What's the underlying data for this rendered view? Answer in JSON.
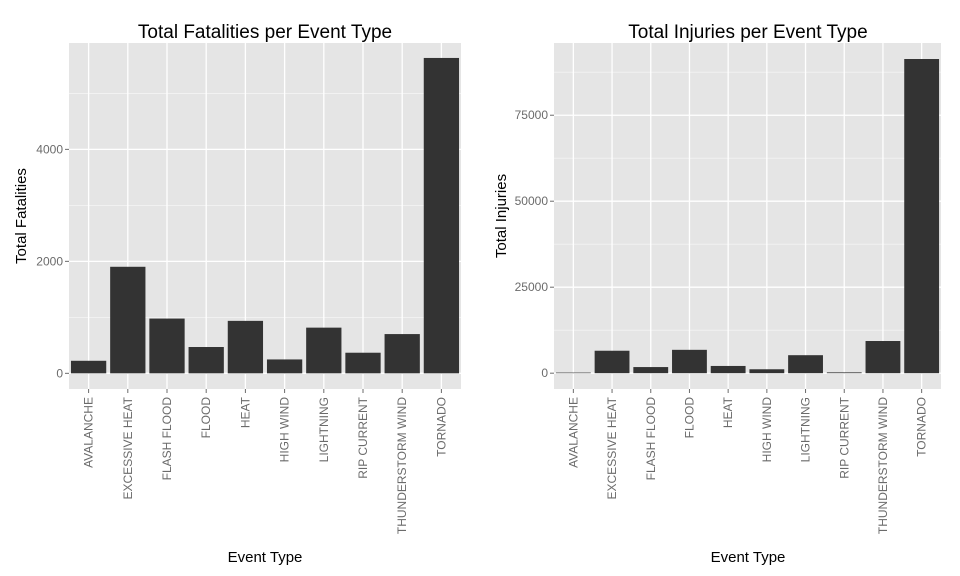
{
  "chart_data": [
    {
      "type": "bar",
      "title": "Total Fatalities per Event Type",
      "xlabel": "Event Type",
      "ylabel": "Total Fatalities",
      "categories": [
        "AVALANCHE",
        "EXCESSIVE HEAT",
        "FLASH FLOOD",
        "FLOOD",
        "HEAT",
        "HIGH WIND",
        "LIGHTNING",
        "RIP CURRENT",
        "THUNDERSTORM WIND",
        "TORNADO"
      ],
      "values": [
        224,
        1903,
        978,
        470,
        937,
        248,
        816,
        368,
        701,
        5633
      ],
      "yticks": [
        0,
        2000,
        4000
      ],
      "ylim": [
        -280,
        5900
      ],
      "grid": true,
      "colors": {
        "bar": "#333333",
        "panel": "#e5e5e5",
        "grid": "#ffffff"
      }
    },
    {
      "type": "bar",
      "title": "Total Injuries per Event Type",
      "xlabel": "Event Type",
      "ylabel": "Total Injuries",
      "categories": [
        "AVALANCHE",
        "EXCESSIVE HEAT",
        "FLASH FLOOD",
        "FLOOD",
        "HEAT",
        "HIGH WIND",
        "LIGHTNING",
        "RIP CURRENT",
        "THUNDERSTORM WIND",
        "TORNADO"
      ],
      "values": [
        170,
        6525,
        1777,
        6789,
        2100,
        1137,
        5230,
        232,
        9353,
        91346
      ],
      "yticks": [
        0,
        25000,
        50000,
        75000
      ],
      "ylim": [
        -4600,
        96000
      ],
      "grid": true,
      "colors": {
        "bar": "#333333",
        "panel": "#e5e5e5",
        "grid": "#ffffff"
      }
    }
  ]
}
